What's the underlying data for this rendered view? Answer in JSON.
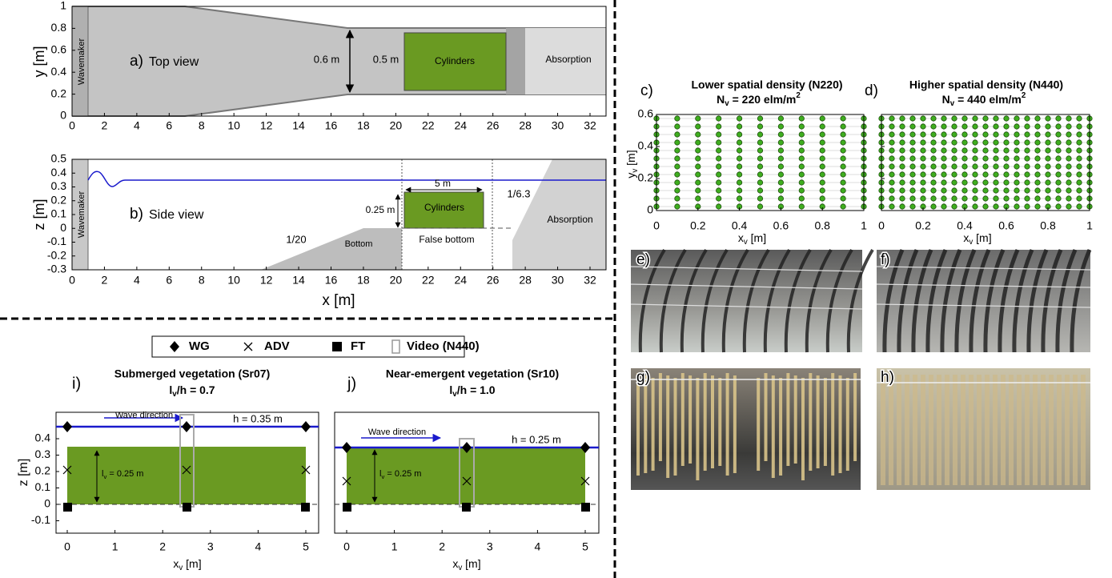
{
  "panel_a": {
    "label": "a)",
    "title": "Top view",
    "ylabel": "y [m]",
    "wavemaker": "Wavemaker",
    "width_label": "0.6 m",
    "width2_label": "0.5 m",
    "cylinders": "Cylinders",
    "absorption": "Absorption",
    "xticks": [
      0,
      2,
      4,
      6,
      8,
      10,
      12,
      14,
      16,
      18,
      20,
      22,
      24,
      26,
      28,
      30,
      32
    ],
    "yticks": [
      0,
      0.2,
      0.4,
      0.6,
      0.8,
      1
    ]
  },
  "panel_b": {
    "label": "b)",
    "title": "Side view",
    "ylabel": "z [m]",
    "xlabel": "x [m]",
    "wavemaker": "Wavemaker",
    "length_label": "5 m",
    "height_label": "0.25 m",
    "cylinders": "Cylinders",
    "slope": "1/20",
    "bottom": "Bottom",
    "false_bottom": "False bottom",
    "absorption_slope": "1/6.3",
    "absorption": "Absorption",
    "xticks": [
      0,
      2,
      4,
      6,
      8,
      10,
      12,
      14,
      16,
      18,
      20,
      22,
      24,
      26,
      28,
      30,
      32
    ],
    "yticks": [
      -0.3,
      -0.2,
      -0.1,
      0,
      0.1,
      0.2,
      0.3,
      0.4,
      0.5
    ]
  },
  "panel_c": {
    "label": "c)",
    "title": "Lower spatial density (N220)",
    "density": {
      "symbol": "N",
      "sub": "v",
      "text": " = 220 elm/m",
      "sup": "2"
    },
    "xlabel": {
      "symbol": "x",
      "sub": "v",
      "unit": " [m]"
    },
    "ylabel": {
      "symbol": "y",
      "sub": "v",
      "unit": " [m]"
    },
    "xticks": [
      0,
      0.2,
      0.4,
      0.6,
      0.8,
      1
    ],
    "yticks": [
      0,
      0.2,
      0.4,
      0.6
    ],
    "color": "#3fae1f",
    "column_x": [
      0,
      0.1,
      0.2,
      0.3,
      0.4,
      0.5,
      0.6,
      0.7,
      0.8,
      0.9,
      1
    ],
    "row_y": [
      0.025,
      0.075,
      0.125,
      0.175,
      0.225,
      0.275,
      0.325,
      0.375,
      0.425,
      0.475,
      0.525,
      0.575
    ]
  },
  "panel_d": {
    "label": "d)",
    "title": "Higher spatial density (N440)",
    "density": {
      "symbol": "N",
      "sub": "v",
      "text": " = 440 elm/m",
      "sup": "2"
    },
    "xlabel": {
      "symbol": "x",
      "sub": "v",
      "unit": " [m]"
    },
    "xticks": [
      0,
      0.2,
      0.4,
      0.6,
      0.8,
      1
    ],
    "yticks": [
      0,
      0.2,
      0.4,
      0.6
    ],
    "color": "#3fae1f",
    "column_x": [
      0,
      0.05,
      0.1,
      0.15,
      0.2,
      0.25,
      0.3,
      0.35,
      0.4,
      0.45,
      0.5,
      0.55,
      0.6,
      0.65,
      0.7,
      0.75,
      0.8,
      0.85,
      0.9,
      0.95,
      1
    ],
    "row_y": [
      0.025,
      0.075,
      0.125,
      0.175,
      0.225,
      0.275,
      0.325,
      0.375,
      0.425,
      0.475,
      0.525,
      0.575
    ]
  },
  "photos": [
    {
      "label": "e)"
    },
    {
      "label": "f)"
    },
    {
      "label": "g)"
    },
    {
      "label": "h)"
    }
  ],
  "legend": [
    {
      "name": "WG"
    },
    {
      "name": "ADV"
    },
    {
      "name": "FT"
    },
    {
      "name": "Video (N440)"
    }
  ],
  "panel_i": {
    "label": "i)",
    "title": "Submerged vegetation (Sr07)",
    "ratio": {
      "symbol": "l",
      "sub": "v",
      "text": "/h = 0.7"
    },
    "wave_direction": "Wave direction",
    "depth_label": "h = 0.35 m",
    "height_label": {
      "symbol": "l",
      "sub": "v",
      "text": " = 0.25 m"
    },
    "ylabel": "z [m]",
    "xlabel": {
      "symbol": "x",
      "sub": "v",
      "unit": " [m]"
    },
    "xticks": [
      0,
      1,
      2,
      3,
      4,
      5
    ],
    "yticks": [
      -0.1,
      0,
      0.1,
      0.2,
      0.3,
      0.4
    ]
  },
  "panel_j": {
    "label": "j)",
    "title": "Near-emergent vegetation (Sr10)",
    "ratio": {
      "symbol": "l",
      "sub": "v",
      "text": "/h = 1.0"
    },
    "wave_direction": "Wave direction",
    "depth_label": "h = 0.25 m",
    "height_label": {
      "symbol": "l",
      "sub": "v",
      "text": " = 0.25 m"
    },
    "xlabel": {
      "symbol": "x",
      "sub": "v",
      "unit": " [m]"
    },
    "xticks": [
      0,
      1,
      2,
      3,
      4,
      5
    ]
  }
}
